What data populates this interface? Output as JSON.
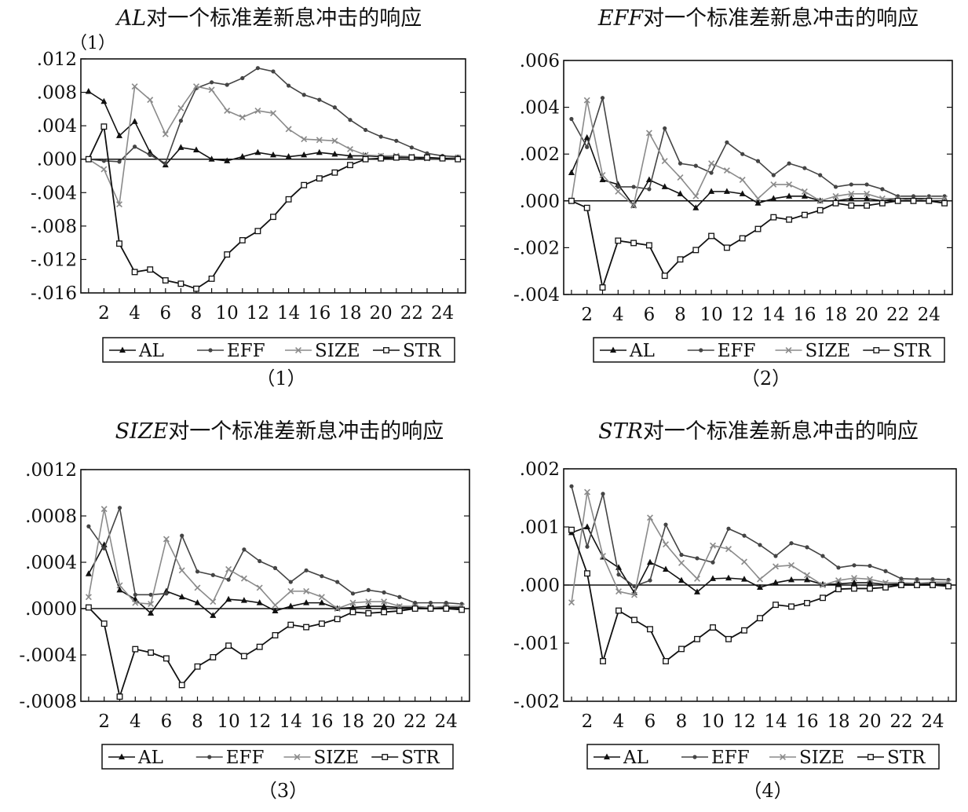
{
  "chart_data": [
    {
      "type": "line",
      "title": "AL对一个标准差新息冲击的响应",
      "title_italic_part": "AL",
      "title_rest": "对一个标准差新息冲击的响应",
      "corner_note": "（1）",
      "caption": "（1）",
      "xlim": [
        1,
        25
      ],
      "x": [
        1,
        2,
        3,
        4,
        5,
        6,
        7,
        8,
        9,
        10,
        11,
        12,
        13,
        14,
        15,
        16,
        17,
        18,
        19,
        20,
        21,
        22,
        23,
        24,
        25
      ],
      "x_tick_labels": [
        "2",
        "4",
        "6",
        "8",
        "10",
        "12",
        "14",
        "16",
        "18",
        "20",
        "22",
        "24"
      ],
      "ylim": [
        -0.016,
        0.012
      ],
      "y_ticks": [
        0.012,
        0.008,
        0.004,
        0.0,
        -0.004,
        -0.008,
        -0.012,
        -0.016
      ],
      "y_tick_labels": [
        ".012",
        ".008",
        ".004",
        ".000",
        "-.004",
        "-.008",
        "-.012",
        "-.016"
      ],
      "legend_position": "bottom",
      "series": [
        {
          "name": "AL",
          "marker": "triangle",
          "color": "#111111",
          "values": [
            0.0081,
            0.0069,
            0.0028,
            0.0045,
            0.0008,
            -0.0007,
            0.0014,
            0.0011,
            0.0,
            -0.0002,
            0.0003,
            0.0008,
            0.0005,
            0.0003,
            0.0005,
            0.0008,
            0.0006,
            0.0004,
            0.0004,
            0.0003,
            0.0002,
            0.0002,
            0.0001,
            0.0001,
            0.0001
          ]
        },
        {
          "name": "EFF",
          "marker": "dot",
          "color": "#444444",
          "values": [
            0.0,
            -0.0002,
            -0.0003,
            0.0015,
            0.0005,
            -0.0005,
            0.0046,
            0.0085,
            0.0092,
            0.0089,
            0.0097,
            0.0109,
            0.0105,
            0.0088,
            0.0077,
            0.0071,
            0.0062,
            0.0047,
            0.0035,
            0.0027,
            0.0022,
            0.0014,
            0.0007,
            0.0004,
            0.0003
          ]
        },
        {
          "name": "SIZE",
          "marker": "x",
          "color": "#8a8a8a",
          "values": [
            0.0,
            -0.0012,
            -0.0054,
            0.0087,
            0.0071,
            0.003,
            0.0061,
            0.0087,
            0.0083,
            0.0058,
            0.005,
            0.0058,
            0.0055,
            0.0036,
            0.0024,
            0.0023,
            0.0022,
            0.0012,
            0.0005,
            0.0004,
            0.0004,
            0.0003,
            0.0001,
            0.0001,
            0.0002
          ]
        },
        {
          "name": "STR",
          "marker": "square",
          "color": "#111111",
          "values": [
            0.0,
            0.0039,
            -0.0101,
            -0.0135,
            -0.0132,
            -0.0145,
            -0.0149,
            -0.0155,
            -0.0143,
            -0.0114,
            -0.0097,
            -0.0086,
            -0.0069,
            -0.0048,
            -0.0031,
            -0.0023,
            -0.0016,
            -0.0007,
            0.0,
            0.0001,
            0.0002,
            0.0002,
            0.0002,
            0.0001,
            0.0
          ]
        }
      ]
    },
    {
      "type": "line",
      "title": "EFF对一个标准差新息冲击的响应",
      "title_italic_part": "EFF",
      "title_rest": "对一个标准差新息冲击的响应",
      "corner_note": "",
      "caption": "（2）",
      "xlim": [
        1,
        25
      ],
      "x": [
        1,
        2,
        3,
        4,
        5,
        6,
        7,
        8,
        9,
        10,
        11,
        12,
        13,
        14,
        15,
        16,
        17,
        18,
        19,
        20,
        21,
        22,
        23,
        24,
        25
      ],
      "x_tick_labels": [
        "2",
        "4",
        "6",
        "8",
        "10",
        "12",
        "14",
        "16",
        "18",
        "20",
        "22",
        "24"
      ],
      "ylim": [
        -0.004,
        0.006
      ],
      "y_ticks": [
        0.006,
        0.004,
        0.002,
        0.0,
        -0.002,
        -0.004
      ],
      "y_tick_labels": [
        ".006",
        ".004",
        ".002",
        ".000",
        "-.002",
        "-.004"
      ],
      "legend_position": "bottom",
      "series": [
        {
          "name": "AL",
          "marker": "triangle",
          "color": "#111111",
          "values": [
            0.0012,
            0.0027,
            0.0009,
            0.0007,
            -0.0002,
            0.0009,
            0.0006,
            0.0003,
            -0.0003,
            0.0004,
            0.0004,
            0.0003,
            -0.0001,
            0.0001,
            0.0002,
            0.0002,
            0.0,
            0.0,
            0.0001,
            0.0001,
            0.0,
            0.0001,
            0.0001,
            0.0001,
            0.0001
          ]
        },
        {
          "name": "EFF",
          "marker": "dot",
          "color": "#444444",
          "values": [
            0.0035,
            0.0023,
            0.0044,
            0.0006,
            0.0006,
            0.0005,
            0.0031,
            0.0016,
            0.0015,
            0.0012,
            0.0025,
            0.002,
            0.0017,
            0.0011,
            0.0016,
            0.0014,
            0.0011,
            0.0006,
            0.0007,
            0.0007,
            0.0005,
            0.0002,
            0.0002,
            0.0002,
            0.0002
          ]
        },
        {
          "name": "SIZE",
          "marker": "x",
          "color": "#8a8a8a",
          "values": [
            0.0,
            0.0043,
            0.0011,
            0.0004,
            -0.0002,
            0.0029,
            0.0017,
            0.001,
            0.0002,
            0.0016,
            0.0013,
            0.0009,
            0.0001,
            0.0007,
            0.0007,
            0.0004,
            0.0,
            0.0002,
            0.0003,
            0.0003,
            0.0001,
            0.0001,
            0.0,
            0.0001,
            0.0001
          ]
        },
        {
          "name": "STR",
          "marker": "square",
          "color": "#111111",
          "values": [
            0.0,
            -0.0003,
            -0.0037,
            -0.0017,
            -0.0018,
            -0.0019,
            -0.0032,
            -0.0025,
            -0.0021,
            -0.0015,
            -0.002,
            -0.0016,
            -0.0012,
            -0.0007,
            -0.0008,
            -0.0006,
            -0.0004,
            -0.0001,
            -0.0002,
            -0.0002,
            -0.0001,
            0.0,
            0.0,
            0.0,
            -0.0001
          ]
        }
      ]
    },
    {
      "type": "line",
      "title": "SIZE对一个标准差新息冲击的响应",
      "title_italic_part": "SIZE",
      "title_rest": "对一个标准差新息冲击的响应",
      "corner_note": "",
      "caption": "（3）",
      "xlim": [
        1,
        25
      ],
      "x": [
        1,
        2,
        3,
        4,
        5,
        6,
        7,
        8,
        9,
        10,
        11,
        12,
        13,
        14,
        15,
        16,
        17,
        18,
        19,
        20,
        21,
        22,
        23,
        24,
        25
      ],
      "x_tick_labels": [
        "2",
        "4",
        "6",
        "8",
        "10",
        "12",
        "14",
        "16",
        "18",
        "20",
        "22",
        "24"
      ],
      "ylim": [
        -0.0008,
        0.0012
      ],
      "y_ticks": [
        0.0012,
        0.0008,
        0.0004,
        0.0,
        -0.0004,
        -0.0008
      ],
      "y_tick_labels": [
        ".0012",
        ".0008",
        ".0004",
        ".0000",
        "-.0004",
        "-.0008"
      ],
      "legend_position": "bottom",
      "series": [
        {
          "name": "AL",
          "marker": "triangle",
          "color": "#111111",
          "values": [
            0.0003,
            0.00055,
            0.00016,
            8e-05,
            -4e-05,
            0.00015,
            0.0001,
            5e-05,
            -6e-05,
            8e-05,
            7e-05,
            5e-05,
            -2e-05,
            2e-05,
            5e-05,
            5e-05,
            0.0,
            1e-05,
            2e-05,
            2e-05,
            1e-05,
            1e-05,
            1e-05,
            1e-05,
            1e-05
          ]
        },
        {
          "name": "EFF",
          "marker": "dot",
          "color": "#444444",
          "values": [
            0.00071,
            0.00052,
            0.00087,
            0.00012,
            0.00012,
            0.00013,
            0.00063,
            0.00032,
            0.00029,
            0.00025,
            0.00051,
            0.00041,
            0.00035,
            0.00023,
            0.00033,
            0.00028,
            0.00023,
            0.00013,
            0.00016,
            0.00014,
            0.0001,
            5e-05,
            5e-05,
            5e-05,
            4e-05
          ]
        },
        {
          "name": "SIZE",
          "marker": "x",
          "color": "#8a8a8a",
          "values": [
            0.0001,
            0.00086,
            0.0002,
            5e-05,
            4e-05,
            0.0006,
            0.00033,
            0.00018,
            6e-05,
            0.00034,
            0.00026,
            0.00018,
            3e-05,
            0.00015,
            0.00015,
            0.0001,
            0.0,
            5e-05,
            6e-05,
            6e-05,
            2e-05,
            2e-05,
            1e-05,
            2e-05,
            2e-05
          ]
        },
        {
          "name": "STR",
          "marker": "square",
          "color": "#111111",
          "values": [
            1e-05,
            -0.00013,
            -0.00076,
            -0.00035,
            -0.00038,
            -0.00043,
            -0.00066,
            -0.0005,
            -0.00042,
            -0.00032,
            -0.00041,
            -0.00033,
            -0.00023,
            -0.00014,
            -0.00016,
            -0.00013,
            -9e-05,
            -3e-05,
            -4e-05,
            -3e-05,
            -2e-05,
            0.0,
            0.0,
            0.0,
            -1e-05
          ]
        }
      ]
    },
    {
      "type": "line",
      "title": "STR对一个标准差新息冲击的响应",
      "title_italic_part": "STR",
      "title_rest": "对一个标准差新息冲击的响应",
      "corner_note": "",
      "caption": "（4）",
      "xlim": [
        1,
        25
      ],
      "x": [
        1,
        2,
        3,
        4,
        5,
        6,
        7,
        8,
        9,
        10,
        11,
        12,
        13,
        14,
        15,
        16,
        17,
        18,
        19,
        20,
        21,
        22,
        23,
        24,
        25
      ],
      "x_tick_labels": [
        "2",
        "4",
        "6",
        "8",
        "10",
        "12",
        "14",
        "16",
        "18",
        "20",
        "22",
        "24"
      ],
      "ylim": [
        -0.002,
        0.002
      ],
      "y_ticks": [
        0.002,
        0.001,
        0.0,
        -0.001,
        -0.002
      ],
      "y_tick_labels": [
        ".002",
        ".001",
        ".000",
        "-.001",
        "-.002"
      ],
      "legend_position": "bottom",
      "series": [
        {
          "name": "AL",
          "marker": "triangle",
          "color": "#111111",
          "values": [
            0.0009,
            0.001,
            0.00048,
            0.0003,
            -0.00013,
            0.00039,
            0.00027,
            8e-05,
            -0.00012,
            0.00011,
            0.00012,
            0.0001,
            -4e-05,
            4e-05,
            9e-05,
            9e-05,
            1e-05,
            2e-05,
            4e-05,
            4e-05,
            1e-05,
            2e-05,
            2e-05,
            2e-05,
            2e-05
          ]
        },
        {
          "name": "EFF",
          "marker": "dot",
          "color": "#444444",
          "values": [
            0.0017,
            0.00066,
            0.00157,
            0.00018,
            -2e-05,
            8e-05,
            0.00104,
            0.00052,
            0.00046,
            0.00039,
            0.00097,
            0.00085,
            0.00069,
            0.0005,
            0.00072,
            0.00065,
            0.0005,
            0.0003,
            0.00034,
            0.00033,
            0.00024,
            0.00011,
            0.0001,
            0.0001,
            9e-05
          ]
        },
        {
          "name": "SIZE",
          "marker": "x",
          "color": "#8a8a8a",
          "values": [
            -0.0003,
            0.0016,
            0.0005,
            -0.00011,
            -0.00017,
            0.00116,
            0.0007,
            0.00038,
            0.00011,
            0.00068,
            0.00062,
            0.0004,
            0.0001,
            0.00032,
            0.00034,
            0.00017,
            0.0,
            8e-05,
            0.00012,
            0.0001,
            4e-05,
            4e-05,
            3e-05,
            5e-05,
            5e-05
          ]
        },
        {
          "name": "STR",
          "marker": "square",
          "color": "#111111",
          "values": [
            0.00095,
            0.0002,
            -0.00131,
            -0.00044,
            -0.0006,
            -0.00076,
            -0.00131,
            -0.0011,
            -0.00093,
            -0.00073,
            -0.00093,
            -0.00078,
            -0.00057,
            -0.00034,
            -0.00037,
            -0.00031,
            -0.00022,
            -7e-05,
            -6e-05,
            -6e-05,
            -4e-05,
            0.0,
            0.0,
            0.0,
            -2e-05
          ]
        }
      ]
    }
  ]
}
